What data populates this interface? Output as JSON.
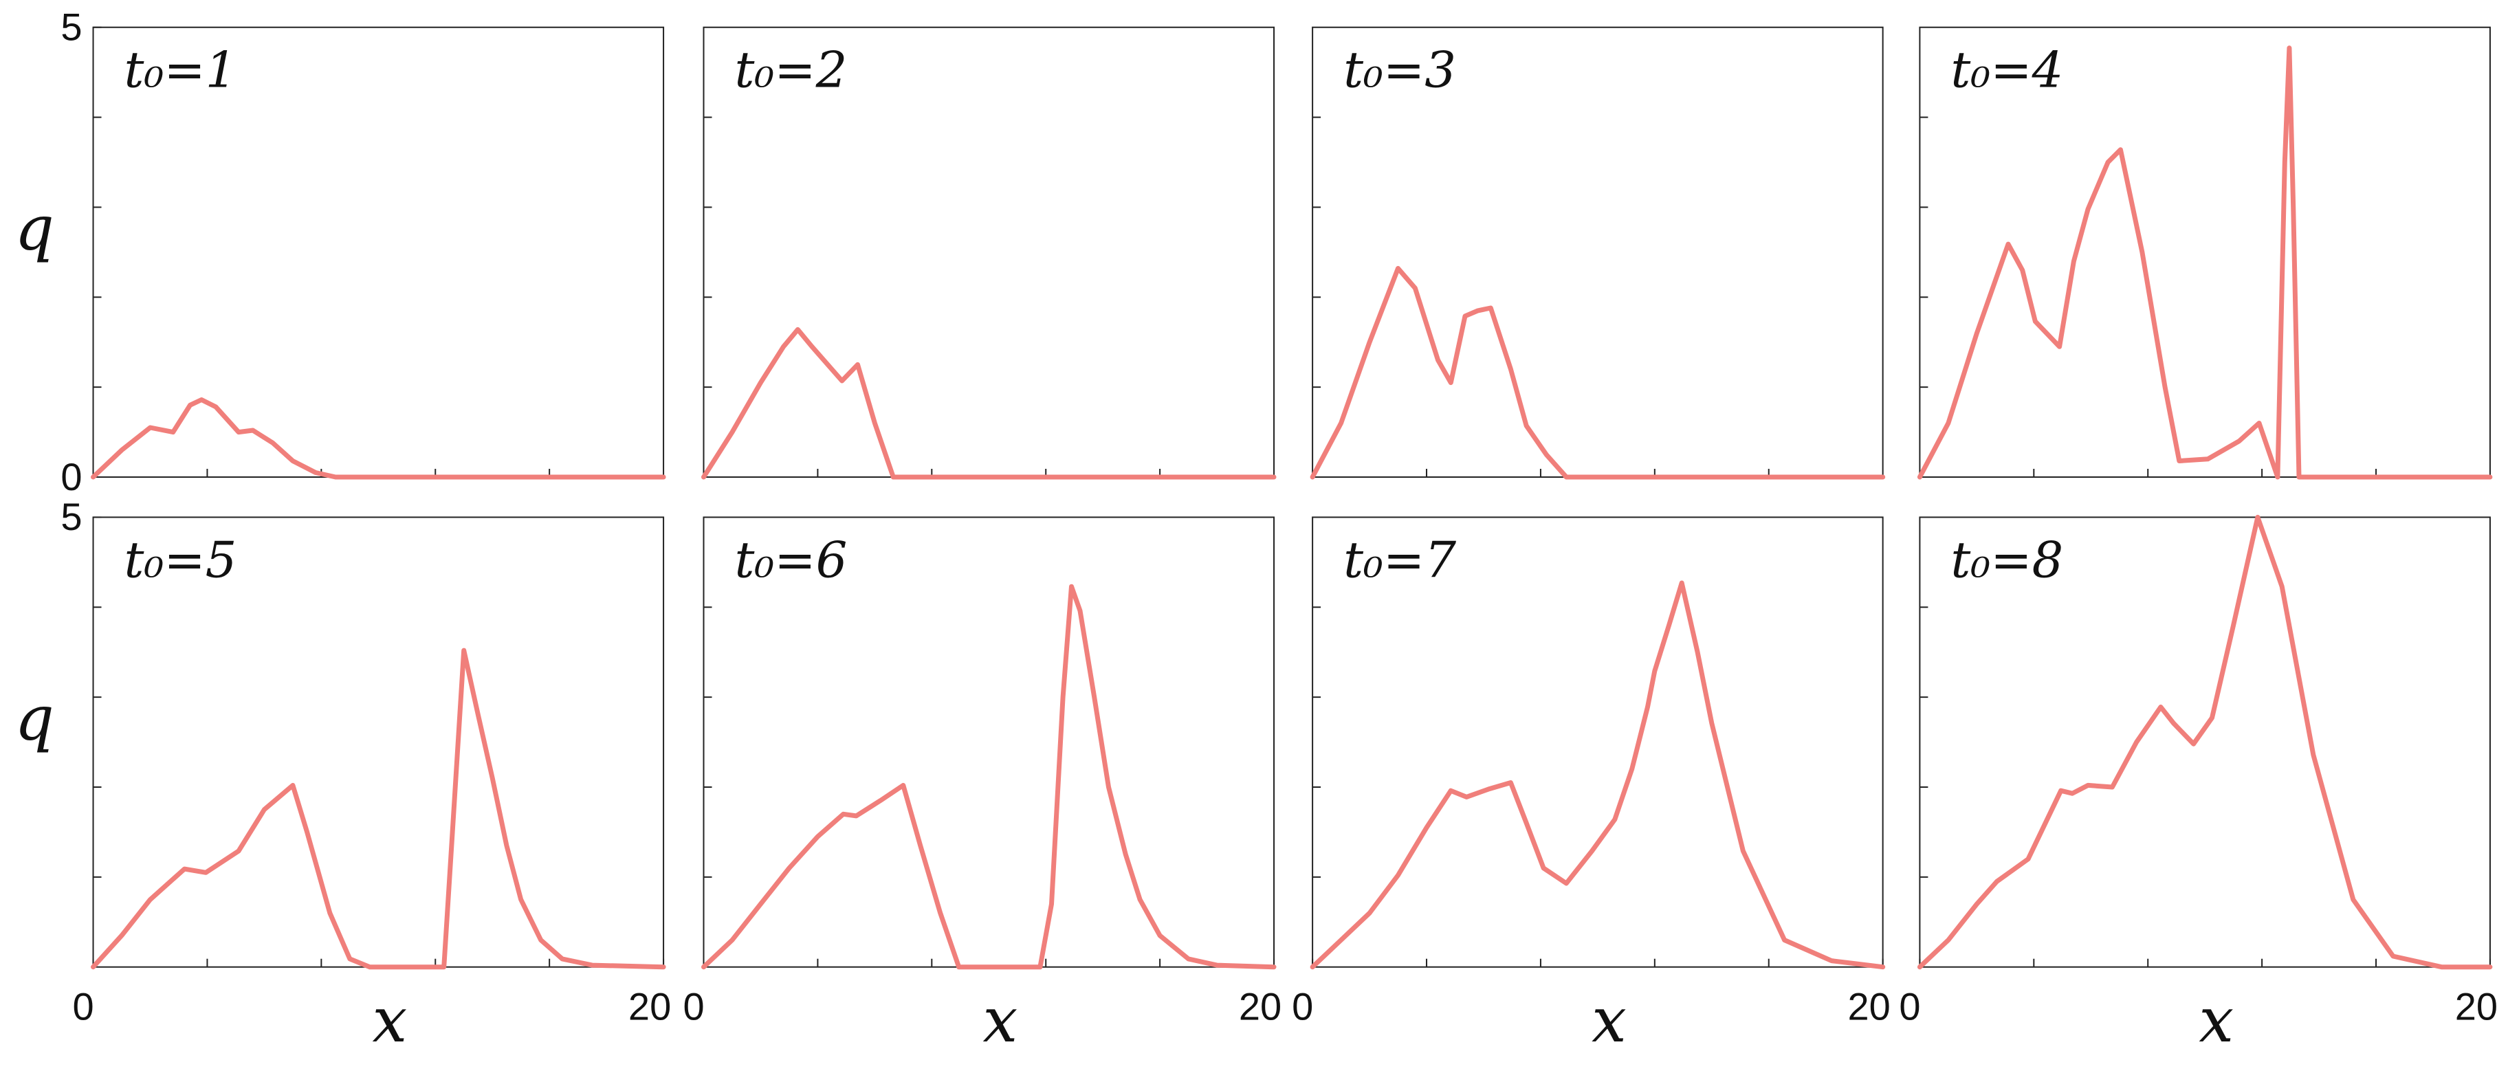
{
  "chart_data": [
    {
      "type": "line",
      "title": "t₀=1",
      "color": "#f07f7b",
      "xlim": [
        0,
        20
      ],
      "ylim": [
        0,
        5
      ],
      "yticks": [
        0,
        5
      ],
      "ylabel": "q",
      "minor_xticks": [
        4,
        8,
        12,
        16
      ],
      "minor_yticks": [
        1,
        2,
        3,
        4
      ],
      "x": [
        0,
        1,
        2,
        2.8,
        3.4,
        3.8,
        4.3,
        5.1,
        5.6,
        6.3,
        7,
        7.8,
        8.5,
        20
      ],
      "values": [
        0,
        0.3,
        0.55,
        0.5,
        0.8,
        0.86,
        0.78,
        0.5,
        0.52,
        0.38,
        0.18,
        0.05,
        0,
        0
      ]
    },
    {
      "type": "line",
      "title": "t₀=2",
      "color": "#f07f7b",
      "xlim": [
        0,
        20
      ],
      "ylim": [
        0,
        5
      ],
      "minor_xticks": [
        4,
        8,
        12,
        16
      ],
      "minor_yticks": [
        1,
        2,
        3,
        4
      ],
      "x": [
        0,
        1,
        2,
        2.8,
        3.3,
        3.8,
        4.85,
        5.4,
        6,
        6.65,
        20
      ],
      "values": [
        0,
        0.5,
        1.05,
        1.45,
        1.64,
        1.45,
        1.07,
        1.25,
        0.6,
        0,
        0
      ]
    },
    {
      "type": "line",
      "title": "t₀=3",
      "color": "#f07f7b",
      "xlim": [
        0,
        20
      ],
      "ylim": [
        0,
        5
      ],
      "minor_xticks": [
        4,
        8,
        12,
        16
      ],
      "minor_yticks": [
        1,
        2,
        3,
        4
      ],
      "x": [
        0,
        1,
        2,
        3,
        3.6,
        4.4,
        4.85,
        5.35,
        5.8,
        6.25,
        6.95,
        7.5,
        8.2,
        8.9,
        20
      ],
      "values": [
        0,
        0.6,
        1.5,
        2.32,
        2.1,
        1.3,
        1.05,
        1.79,
        1.85,
        1.88,
        1.2,
        0.57,
        0.25,
        0,
        0
      ]
    },
    {
      "type": "line",
      "title": "t₀=4",
      "color": "#f07f7b",
      "xlim": [
        0,
        20
      ],
      "ylim": [
        0,
        5
      ],
      "minor_xticks": [
        4,
        8,
        12,
        16
      ],
      "minor_yticks": [
        1,
        2,
        3,
        4
      ],
      "x": [
        0,
        1,
        2,
        3.1,
        3.6,
        4.05,
        4.9,
        5.4,
        5.9,
        6.6,
        7.04,
        7.8,
        8.6,
        9.1,
        10.1,
        11.2,
        11.9,
        12.55,
        12.8,
        12.96,
        13.1,
        13.3,
        20
      ],
      "values": [
        0,
        0.6,
        1.6,
        2.59,
        2.3,
        1.73,
        1.45,
        2.4,
        2.98,
        3.5,
        3.64,
        2.5,
        1,
        0.18,
        0.2,
        0.4,
        0.6,
        0,
        3.5,
        4.77,
        3,
        0,
        0
      ]
    },
    {
      "type": "line",
      "title": "t₀=5",
      "color": "#f07f7b",
      "xlim": [
        0,
        20
      ],
      "ylim": [
        0,
        5
      ],
      "yticks": [
        5
      ],
      "xticks": [
        0,
        20
      ],
      "ylabel": "q",
      "xlabel": "x",
      "minor_xticks": [
        4,
        8,
        12,
        16
      ],
      "minor_yticks": [
        1,
        2,
        3,
        4
      ],
      "x": [
        0,
        1,
        2,
        3.2,
        3.95,
        5.1,
        6,
        7,
        7.5,
        8.3,
        9,
        9.7,
        12.3,
        12.6,
        13,
        13.5,
        14,
        14.5,
        15,
        15.7,
        16.45,
        17.5,
        20
      ],
      "values": [
        0,
        0.35,
        0.75,
        1.09,
        1.05,
        1.29,
        1.75,
        2.02,
        1.5,
        0.6,
        0.09,
        0,
        0,
        1.5,
        3.52,
        2.8,
        2.1,
        1.35,
        0.75,
        0.3,
        0.09,
        0.02,
        0
      ]
    },
    {
      "type": "line",
      "title": "t₀=6",
      "color": "#f07f7b",
      "xlim": [
        0,
        20
      ],
      "ylim": [
        0,
        5
      ],
      "xticks": [
        0,
        20
      ],
      "xlabel": "x",
      "minor_xticks": [
        4,
        8,
        12,
        16
      ],
      "minor_yticks": [
        1,
        2,
        3,
        4
      ],
      "x": [
        0,
        1,
        2,
        3,
        4,
        4.9,
        5.35,
        6.2,
        7,
        7.6,
        8.3,
        8.95,
        11.8,
        12.2,
        12.6,
        12.9,
        13.2,
        13.7,
        14.2,
        14.8,
        15.3,
        16,
        17,
        18,
        20
      ],
      "values": [
        0,
        0.3,
        0.7,
        1.1,
        1.45,
        1.7,
        1.68,
        1.85,
        2.02,
        1.35,
        0.6,
        0,
        0,
        0.7,
        3,
        4.23,
        3.96,
        3,
        2,
        1.25,
        0.75,
        0.35,
        0.09,
        0.02,
        0
      ]
    },
    {
      "type": "line",
      "title": "t₀=7",
      "color": "#f07f7b",
      "xlim": [
        0,
        20
      ],
      "ylim": [
        0,
        5
      ],
      "xticks": [
        0,
        20
      ],
      "xlabel": "x",
      "minor_xticks": [
        4,
        8,
        12,
        16
      ],
      "minor_yticks": [
        1,
        2,
        3,
        4
      ],
      "x": [
        0,
        1,
        2,
        3,
        4,
        4.85,
        5.4,
        6.2,
        6.95,
        7.5,
        8.1,
        8.9,
        9.8,
        10.6,
        11.2,
        11.75,
        12,
        12.5,
        12.95,
        13.5,
        14,
        15.1,
        16.55,
        18.2,
        20
      ],
      "values": [
        0,
        0.3,
        0.6,
        1.02,
        1.55,
        1.96,
        1.89,
        1.98,
        2.05,
        1.6,
        1.1,
        0.93,
        1.29,
        1.64,
        2.2,
        2.89,
        3.29,
        3.8,
        4.27,
        3.5,
        2.71,
        1.29,
        0.3,
        0.07,
        0
      ]
    },
    {
      "type": "line",
      "title": "t₀=8",
      "color": "#f07f7b",
      "xlim": [
        0,
        20
      ],
      "ylim": [
        0,
        5
      ],
      "xticks": [
        0,
        20
      ],
      "xlabel": "x",
      "minor_xticks": [
        4,
        8,
        12,
        16
      ],
      "minor_yticks": [
        1,
        2,
        3,
        4
      ],
      "x": [
        0,
        1,
        2,
        2.7,
        3.8,
        4.95,
        5.35,
        5.9,
        6.75,
        7.6,
        8.45,
        8.9,
        9.6,
        10.25,
        11,
        11.85,
        12.7,
        13.8,
        15.2,
        16.6,
        18.3,
        20
      ],
      "values": [
        0,
        0.3,
        0.7,
        0.95,
        1.2,
        1.96,
        1.93,
        2.02,
        2,
        2.5,
        2.89,
        2.71,
        2.48,
        2.77,
        3.8,
        5,
        4.23,
        2.36,
        0.75,
        0.12,
        0,
        0
      ]
    }
  ]
}
